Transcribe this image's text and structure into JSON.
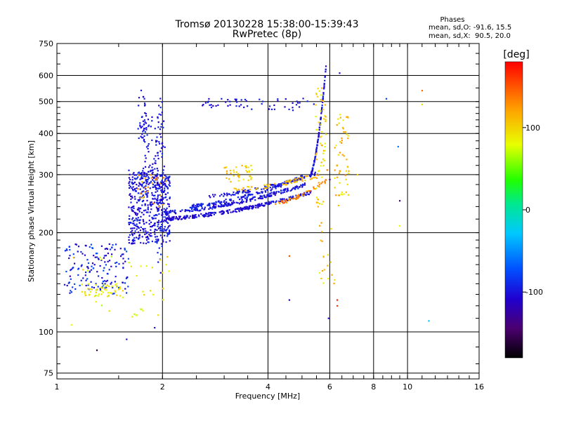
{
  "chart_data": {
    "type": "scatter",
    "title": "Tromsø 20130228 15:38:00-15:39:43",
    "subtitle": "RwPretec (8p)",
    "xlabel": "Frequency [MHz]",
    "ylabel": "Stationary phase Virtual Height [km]",
    "x_scale": "log",
    "y_scale": "log",
    "xlim": [
      1,
      16
    ],
    "ylim": [
      72,
      750
    ],
    "x_ticks": [
      1,
      2,
      4,
      6,
      8,
      10,
      16
    ],
    "x_tick_labels": [
      "1",
      "2",
      "4",
      "6",
      "8",
      "10",
      "16"
    ],
    "y_ticks": [
      75,
      100,
      200,
      300,
      400,
      500,
      600,
      750
    ],
    "y_tick_labels": [
      "75",
      "100",
      "200",
      "300",
      "400",
      "500",
      "600",
      "750"
    ],
    "grid": true,
    "phase_info": {
      "title": "Phases",
      "line_o": "mean, sd,O: -91.6, 15.5",
      "line_x": "mean, sd,X:  90.5, 20.0"
    },
    "colorbar": {
      "label": "[deg]",
      "range": [
        -180,
        180
      ],
      "ticks": [
        100,
        0,
        -100
      ],
      "tick_labels": [
        "100",
        "0",
        "-100"
      ]
    },
    "clusters": [
      {
        "kind": "band",
        "f": [
          1.6,
          2.1
        ],
        "h": [
          185,
          310
        ],
        "n": 520,
        "phase": -100,
        "spread": 15
      },
      {
        "kind": "band",
        "f": [
          1.05,
          1.6
        ],
        "h": [
          130,
          185
        ],
        "n": 160,
        "phase": -95,
        "spread": 25
      },
      {
        "kind": "band",
        "f": [
          1.2,
          1.55
        ],
        "h": [
          128,
          140
        ],
        "n": 45,
        "phase": 90,
        "spread": 12
      },
      {
        "kind": "band",
        "f": [
          1.75,
          2.05
        ],
        "h": [
          300,
          450
        ],
        "n": 70,
        "phase": -100,
        "spread": 15
      },
      {
        "kind": "band",
        "f": [
          1.7,
          1.8
        ],
        "h": [
          380,
          545
        ],
        "n": 30,
        "phase": -100,
        "spread": 10
      },
      {
        "kind": "band",
        "f": [
          1.9,
          2.0
        ],
        "h": [
          150,
          520
        ],
        "n": 40,
        "phase": -100,
        "spread": 12
      },
      {
        "kind": "band",
        "f": [
          1.1,
          2.1
        ],
        "h": [
          110,
          170
        ],
        "n": 40,
        "phase": 85,
        "spread": 20
      },
      {
        "kind": "band",
        "f": [
          1.7,
          2.1
        ],
        "h": [
          240,
          300
        ],
        "n": 25,
        "phase": 120,
        "spread": 15
      },
      {
        "kind": "trace",
        "f": [
          2.05,
          5.3
        ],
        "h": [
          220,
          265
        ],
        "n": 260,
        "phase": -105,
        "spread": 12,
        "jitter": 0.012
      },
      {
        "kind": "trace",
        "f": [
          2.05,
          5.1
        ],
        "h": [
          230,
          280
        ],
        "n": 200,
        "phase": -100,
        "spread": 12,
        "jitter": 0.012
      },
      {
        "kind": "trace",
        "f": [
          2.4,
          5.0
        ],
        "h": [
          240,
          295
        ],
        "n": 140,
        "phase": -95,
        "spread": 12,
        "jitter": 0.012
      },
      {
        "kind": "trace",
        "f": [
          2.7,
          5.6
        ],
        "h": [
          258,
          305
        ],
        "n": 100,
        "phase": -100,
        "spread": 10,
        "jitter": 0.012
      },
      {
        "kind": "trace",
        "f": [
          3.2,
          5.6
        ],
        "h": [
          270,
          300
        ],
        "n": 60,
        "phase": 110,
        "spread": 15,
        "jitter": 0.015
      },
      {
        "kind": "trace",
        "f": [
          4.2,
          5.9
        ],
        "h": [
          245,
          290
        ],
        "n": 50,
        "phase": 130,
        "spread": 15,
        "jitter": 0.012
      },
      {
        "kind": "band",
        "f": [
          3.0,
          3.6
        ],
        "h": [
          285,
          320
        ],
        "n": 40,
        "phase": 100,
        "spread": 20
      },
      {
        "kind": "trace",
        "f": [
          5.3,
          5.85
        ],
        "h": [
          300,
          640
        ],
        "n": 120,
        "phase": -100,
        "spread": 12,
        "jitter": 0.008
      },
      {
        "kind": "band",
        "f": [
          5.45,
          5.85
        ],
        "h": [
          240,
          560
        ],
        "n": 60,
        "phase": 100,
        "spread": 25
      },
      {
        "kind": "band",
        "f": [
          6.2,
          6.8
        ],
        "h": [
          240,
          470
        ],
        "n": 55,
        "phase": 105,
        "spread": 25
      },
      {
        "kind": "band",
        "f": [
          3.5,
          5.5
        ],
        "h": [
          470,
          520
        ],
        "n": 25,
        "phase": -100,
        "spread": 12
      },
      {
        "kind": "band",
        "f": [
          2.6,
          3.5
        ],
        "h": [
          480,
          510
        ],
        "n": 30,
        "phase": -100,
        "spread": 15
      },
      {
        "kind": "band",
        "f": [
          5.6,
          6.2
        ],
        "h": [
          140,
          220
        ],
        "n": 20,
        "phase": 100,
        "spread": 25
      }
    ],
    "points": [
      {
        "f": 1.3,
        "h": 88,
        "phase": -160
      },
      {
        "f": 1.58,
        "h": 95,
        "phase": -100
      },
      {
        "f": 1.9,
        "h": 103,
        "phase": -100
      },
      {
        "f": 1.1,
        "h": 105,
        "phase": 80
      },
      {
        "f": 4.6,
        "h": 125,
        "phase": -110
      },
      {
        "f": 5.95,
        "h": 110,
        "phase": -110
      },
      {
        "f": 6.3,
        "h": 120,
        "phase": 160
      },
      {
        "f": 6.3,
        "h": 125,
        "phase": 170
      },
      {
        "f": 4.6,
        "h": 170,
        "phase": 150
      },
      {
        "f": 9.5,
        "h": 250,
        "phase": -140
      },
      {
        "f": 9.5,
        "h": 210,
        "phase": 80
      },
      {
        "f": 11.5,
        "h": 108,
        "phase": -30
      },
      {
        "f": 11.0,
        "h": 540,
        "phase": 140
      },
      {
        "f": 11.0,
        "h": 490,
        "phase": 95
      },
      {
        "f": 8.7,
        "h": 510,
        "phase": -80
      },
      {
        "f": 9.4,
        "h": 365,
        "phase": -60
      },
      {
        "f": 6.0,
        "h": 290,
        "phase": -140
      },
      {
        "f": 6.4,
        "h": 610,
        "phase": -100
      },
      {
        "f": 7.2,
        "h": 300,
        "phase": 100
      },
      {
        "f": 5.9,
        "h": 310,
        "phase": 140
      }
    ]
  }
}
